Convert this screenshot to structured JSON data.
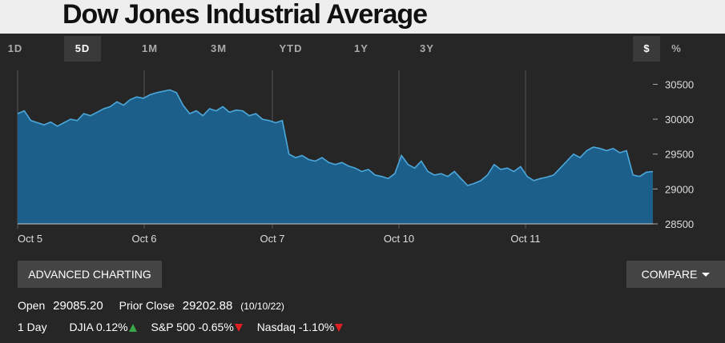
{
  "title": "Dow Jones Industrial Average",
  "ranges": [
    "1D",
    "5D",
    "1M",
    "3M",
    "YTD",
    "1Y",
    "3Y"
  ],
  "active_range": "5D",
  "units": [
    "$",
    "%"
  ],
  "active_unit": "$",
  "buttons": {
    "advanced_charting": "ADVANCED CHARTING",
    "compare": "COMPARE"
  },
  "stats": {
    "open_label": "Open",
    "open_value": "29085.20",
    "prior_close_label": "Prior Close",
    "prior_close_value": "29202.88",
    "prior_close_date": "(10/10/22)",
    "period_label": "1 Day",
    "djia_label": "DJIA",
    "djia_change": "0.12%",
    "sp500_label": "S&P 500",
    "sp500_change": "-0.65%",
    "nasdaq_label": "Nasdaq",
    "nasdaq_change": "-1.10%"
  },
  "colors": {
    "area_fill": "#1c5f8a",
    "line": "#4ca8dc",
    "background": "#262626",
    "up": "#3aa64a",
    "down": "#e02020"
  },
  "chart_data": {
    "type": "area",
    "x_tick_labels": [
      "Oct 5",
      "Oct 6",
      "Oct 7",
      "Oct 10",
      "Oct 11"
    ],
    "y_ticks": [
      28500,
      29000,
      29500,
      30000,
      30500
    ],
    "ylim": [
      28500,
      30700
    ],
    "grid": "vertical at day boundaries",
    "y_axis_position": "right",
    "series": [
      {
        "values": [
          30080,
          30120,
          29980,
          29950,
          29920,
          29960,
          29900,
          29950,
          30000,
          29980,
          30080,
          30050,
          30100,
          30150,
          30180,
          30250,
          30200,
          30280,
          30320,
          30300,
          30350,
          30380,
          30400,
          30420,
          30380,
          30200,
          30080,
          30120,
          30050,
          30150,
          30120,
          30180,
          30100,
          30130,
          30120,
          30050,
          30080,
          30000,
          29980,
          29950,
          29980,
          29500,
          29450,
          29480,
          29420,
          29400,
          29450,
          29380,
          29350,
          29380,
          29330,
          29300,
          29250,
          29280,
          29200,
          29180,
          29150,
          29220,
          29480,
          29350,
          29300,
          29400,
          29250,
          29200,
          29220,
          29180,
          29250,
          29150,
          29050,
          29080,
          29120,
          29200,
          29350,
          29280,
          29300,
          29250,
          29320,
          29180,
          29120,
          29150,
          29170,
          29200,
          29300,
          29400,
          29500,
          29450,
          29550,
          29600,
          29580,
          29550,
          29580,
          29520,
          29550,
          29200,
          29180,
          29240,
          29250
        ]
      }
    ]
  }
}
